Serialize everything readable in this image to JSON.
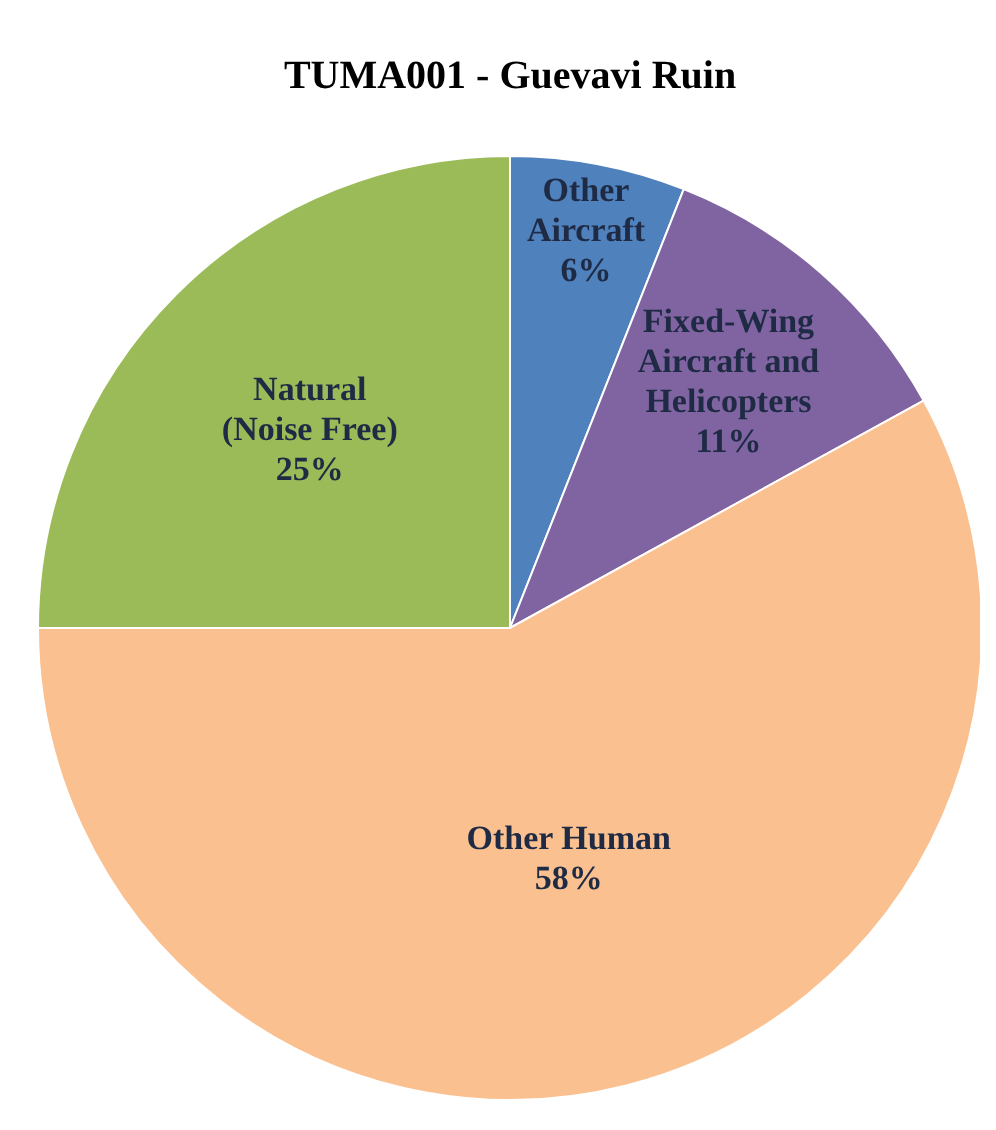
{
  "chart_data": {
    "type": "pie",
    "title": "TUMA001 - Guevavi Ruin",
    "categories": [
      "Other\nAircraft",
      "Fixed-Wing\nAircraft and\nHelicopters",
      "Other Human",
      "Natural\n(Noise Free)"
    ],
    "values": [
      6,
      11,
      58,
      25
    ],
    "colors": [
      "#4f81bd",
      "#8064a2",
      "#fac090",
      "#9bbb59"
    ],
    "value_labels": [
      "6%",
      "11%",
      "58%",
      "25%"
    ]
  }
}
